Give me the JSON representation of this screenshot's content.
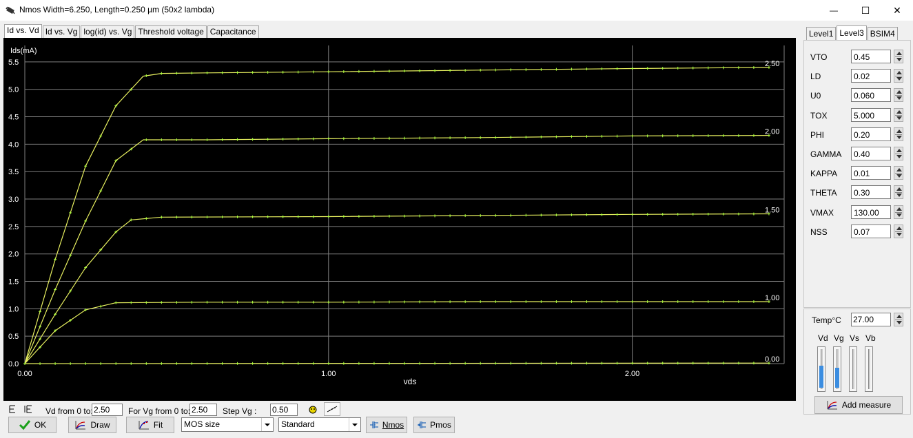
{
  "window": {
    "title": "Nmos Width=6.250, Length=0.250 µm (50x2 lambda)",
    "minimize": "—",
    "maximize": "☐",
    "close": "✕"
  },
  "tabs": [
    "Id vs. Vd",
    "Id vs. Vg",
    "log(id) vs. Vg",
    "Threshold voltage",
    "Capacitance"
  ],
  "right_tabs": [
    "Level1",
    "Level3",
    "BSIM4"
  ],
  "params": [
    {
      "label": "VTO",
      "value": "0.45"
    },
    {
      "label": "LD",
      "value": "0.02"
    },
    {
      "label": "U0",
      "value": "0.060"
    },
    {
      "label": "TOX",
      "value": "5.000"
    },
    {
      "label": "PHI",
      "value": "0.20"
    },
    {
      "label": "GAMMA",
      "value": "0.40"
    },
    {
      "label": "KAPPA",
      "value": "0.01"
    },
    {
      "label": "THETA",
      "value": "0.30"
    },
    {
      "label": "VMAX",
      "value": "130.00"
    },
    {
      "label": "NSS",
      "value": "0.07"
    }
  ],
  "temp": {
    "label": "Temp°C",
    "value": "27.00"
  },
  "sliders": [
    {
      "label": "Vd",
      "level": 0.55
    },
    {
      "label": "Vg",
      "level": 0.5
    },
    {
      "label": "Vs",
      "level": 0
    },
    {
      "label": "Vb",
      "level": 0
    }
  ],
  "add_measure": "Add measure",
  "bottom": {
    "vd_label": "Vd from 0 to:",
    "vd_value": "2.50",
    "vg_label": "For Vg from 0 to:",
    "vg_value": "2.50",
    "step_label": "Step Vg :",
    "step_value": "0.50"
  },
  "buttons": {
    "ok": "OK",
    "draw": "Draw",
    "fit": "Fit",
    "mos_size": "MOS size",
    "standard": "Standard",
    "nmos": "Nmos",
    "pmos": "Pmos"
  },
  "colors": {
    "curve": "#e8f060",
    "marker": "#b0ff40",
    "grid": "#808080",
    "background": "#000000"
  },
  "chart_data": {
    "type": "line",
    "ylabel": "Ids(mA)",
    "xlabel": "vds",
    "xlim": [
      0,
      2.5
    ],
    "ylim": [
      0,
      5.8
    ],
    "xticks": [
      "0.00",
      "1.00",
      "2.00"
    ],
    "yticks": [
      "0.0",
      "0.5",
      "1.0",
      "1.5",
      "2.0",
      "2.5",
      "3.0",
      "3.5",
      "4.0",
      "4.5",
      "5.0",
      "5.5"
    ],
    "grid": true,
    "series": [
      {
        "name": "2.50",
        "points": [
          [
            0,
            0
          ],
          [
            0.1,
            1.9
          ],
          [
            0.2,
            3.6
          ],
          [
            0.3,
            4.7
          ],
          [
            0.39,
            5.24
          ],
          [
            0.45,
            5.29
          ],
          [
            0.6,
            5.3
          ],
          [
            1.0,
            5.32
          ],
          [
            1.5,
            5.35
          ],
          [
            2.0,
            5.38
          ],
          [
            2.45,
            5.4
          ]
        ]
      },
      {
        "name": "2.00",
        "points": [
          [
            0,
            0
          ],
          [
            0.1,
            1.35
          ],
          [
            0.2,
            2.6
          ],
          [
            0.3,
            3.7
          ],
          [
            0.39,
            4.08
          ],
          [
            0.6,
            4.08
          ],
          [
            1.0,
            4.1
          ],
          [
            1.5,
            4.12
          ],
          [
            2.0,
            4.15
          ],
          [
            2.45,
            4.16
          ]
        ]
      },
      {
        "name": "1.50",
        "points": [
          [
            0,
            0
          ],
          [
            0.1,
            0.9
          ],
          [
            0.2,
            1.75
          ],
          [
            0.3,
            2.4
          ],
          [
            0.35,
            2.62
          ],
          [
            0.45,
            2.67
          ],
          [
            1.0,
            2.68
          ],
          [
            1.5,
            2.7
          ],
          [
            2.0,
            2.72
          ],
          [
            2.45,
            2.73
          ]
        ]
      },
      {
        "name": "1.00",
        "points": [
          [
            0,
            0
          ],
          [
            0.05,
            0.3
          ],
          [
            0.1,
            0.6
          ],
          [
            0.2,
            0.98
          ],
          [
            0.3,
            1.11
          ],
          [
            0.6,
            1.12
          ],
          [
            1.0,
            1.12
          ],
          [
            1.5,
            1.13
          ],
          [
            2.0,
            1.13
          ],
          [
            2.45,
            1.13
          ]
        ]
      },
      {
        "name": "0.00",
        "points": [
          [
            0,
            0
          ],
          [
            2.45,
            0.01
          ]
        ]
      }
    ]
  }
}
